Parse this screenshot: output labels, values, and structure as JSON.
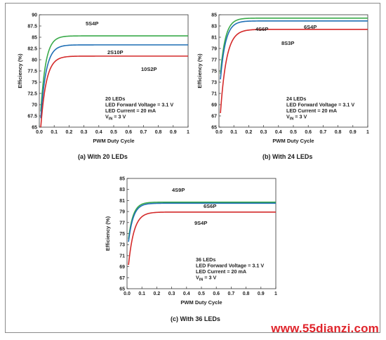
{
  "page": {
    "watermark": "www.55dianzi.com"
  },
  "chart_data": [
    {
      "type": "line",
      "caption": "(a) With 20 LEDs",
      "xlabel": "PWM Duty Cycle",
      "ylabel": "Efficiency (%)",
      "xlim": [
        0,
        1
      ],
      "ylim": [
        65,
        90
      ],
      "xticks": [
        0,
        0.1,
        0.2,
        0.3,
        0.4,
        0.5,
        0.6,
        0.7,
        0.8,
        0.9,
        1
      ],
      "xtick_labels": [
        "0.0",
        "0.1",
        "0.2",
        "0.3",
        "0.4",
        "0.5",
        "0.6",
        "0.7",
        "0.8",
        "0.9",
        "1"
      ],
      "yticks": [
        65,
        67.5,
        70,
        72.5,
        75,
        77.5,
        80,
        82.5,
        85,
        87.5,
        90
      ],
      "ytick_labels": [
        "65",
        "67.5",
        "70",
        "72.5",
        "75",
        "77.5",
        "80",
        "82.5",
        "85",
        "87.5",
        "90"
      ],
      "grid": false,
      "info": [
        "20 LEDs",
        "LED Forward Voltage = 3.1 V",
        "LED Current = 20 mA",
        "V_IN = 3 V"
      ],
      "series": [
        {
          "name": "5S4P",
          "color": "#3aaa4a",
          "start": 68.5,
          "asymptote": 85.3,
          "k": 30,
          "x": [
            0.01,
            0.05,
            0.1,
            0.2,
            0.4,
            0.6,
            0.8,
            1.0
          ],
          "values": [
            68.5,
            80.5,
            83.5,
            84.9,
            85.2,
            85.3,
            85.3,
            85.3
          ]
        },
        {
          "name": "2S10P",
          "color": "#1f6fb5",
          "start": 67.0,
          "asymptote": 83.3,
          "k": 28,
          "x": [
            0.01,
            0.05,
            0.1,
            0.2,
            0.4,
            0.6,
            0.8,
            1.0
          ],
          "values": [
            67.0,
            78.0,
            81.3,
            82.8,
            83.2,
            83.3,
            83.3,
            83.3
          ]
        },
        {
          "name": "10S2P",
          "color": "#d42a2a",
          "start": 65.0,
          "asymptote": 80.8,
          "k": 27,
          "x": [
            0.01,
            0.05,
            0.1,
            0.2,
            0.4,
            0.6,
            0.8,
            1.0
          ],
          "values": [
            65.0,
            75.5,
            78.8,
            80.4,
            80.7,
            80.8,
            80.8,
            80.8
          ]
        }
      ],
      "annotations": [
        {
          "text": "5S4P",
          "series": 0
        },
        {
          "text": "2S10P",
          "series": 1
        },
        {
          "text": "10S2P",
          "series": 2
        }
      ]
    },
    {
      "type": "line",
      "caption": "(b) With 24 LEDs",
      "xlabel": "PWM Duty Cycle",
      "ylabel": "Efficiency (%)",
      "xlim": [
        0,
        1
      ],
      "ylim": [
        65,
        85
      ],
      "xticks": [
        0,
        0.1,
        0.2,
        0.3,
        0.4,
        0.5,
        0.6,
        0.7,
        0.8,
        0.9,
        1
      ],
      "xtick_labels": [
        "0.0",
        "0.1",
        "0.2",
        "0.3",
        "0.4",
        "0.5",
        "0.6",
        "0.7",
        "0.8",
        "0.9",
        "1"
      ],
      "yticks": [
        65,
        67,
        69,
        71,
        73,
        75,
        77,
        79,
        81,
        83,
        85
      ],
      "ytick_labels": [
        "65",
        "67",
        "69",
        "71",
        "73",
        "75",
        "77",
        "79",
        "81",
        "83",
        "85"
      ],
      "grid": false,
      "info": [
        "24 LEDs",
        "LED Forward Voltage = 3.1 V",
        "LED Current = 20 mA",
        "V_IN = 3 V"
      ],
      "series": [
        {
          "name": "4S6P",
          "color": "#3aaa4a",
          "start": 74.5,
          "asymptote": 84.4,
          "k": 30,
          "x": [
            0.01,
            0.05,
            0.1,
            0.2,
            0.4,
            0.6,
            0.8,
            1.0
          ],
          "values": [
            74.5,
            81.5,
            83.5,
            84.2,
            84.4,
            84.4,
            84.4,
            84.4
          ]
        },
        {
          "name": "6S4P",
          "color": "#1f6fb5",
          "start": 73.5,
          "asymptote": 83.9,
          "k": 29,
          "x": [
            0.01,
            0.05,
            0.1,
            0.2,
            0.4,
            0.6,
            0.8,
            1.0
          ],
          "values": [
            73.5,
            80.8,
            82.9,
            83.7,
            83.9,
            83.9,
            83.9,
            83.9
          ]
        },
        {
          "name": "8S3P",
          "color": "#d42a2a",
          "start": 67.5,
          "asymptote": 82.4,
          "k": 25,
          "x": [
            0.01,
            0.05,
            0.1,
            0.2,
            0.4,
            0.6,
            0.8,
            1.0
          ],
          "values": [
            67.5,
            78.3,
            81.0,
            82.1,
            82.4,
            82.4,
            82.4,
            82.4
          ]
        }
      ],
      "annotations": [
        {
          "text": "4S6P",
          "series": 0
        },
        {
          "text": "6S4P",
          "series": 1
        },
        {
          "text": "8S3P",
          "series": 2
        }
      ]
    },
    {
      "type": "line",
      "caption": "(c) With 36 LEDs",
      "xlabel": "PWM Duty Cycle",
      "ylabel": "Efficiency (%)",
      "xlim": [
        0,
        1
      ],
      "ylim": [
        65,
        85
      ],
      "xticks": [
        0,
        0.1,
        0.2,
        0.3,
        0.4,
        0.5,
        0.6,
        0.7,
        0.8,
        0.9,
        1
      ],
      "xtick_labels": [
        "0.0",
        "0.1",
        "0.2",
        "0.3",
        "0.4",
        "0.5",
        "0.6",
        "0.7",
        "0.8",
        "0.9",
        "1"
      ],
      "yticks": [
        65,
        67,
        69,
        71,
        73,
        75,
        77,
        79,
        81,
        83,
        85
      ],
      "ytick_labels": [
        "65",
        "67",
        "69",
        "71",
        "73",
        "75",
        "77",
        "79",
        "81",
        "83",
        "85"
      ],
      "grid": false,
      "info": [
        "36 LEDs",
        "LED Forward Voltage = 3.1 V",
        "LED Current = 20 mA",
        "V_IN = 3 V"
      ],
      "series": [
        {
          "name": "4S9P",
          "color": "#3aaa4a",
          "start": 74.0,
          "asymptote": 80.7,
          "k": 32,
          "x": [
            0.01,
            0.05,
            0.1,
            0.2,
            0.4,
            0.6,
            0.8,
            1.0
          ],
          "values": [
            74.0,
            79.2,
            80.4,
            80.7,
            80.7,
            80.7,
            80.7,
            80.7
          ]
        },
        {
          "name": "6S6P",
          "color": "#1f6fb5",
          "start": 73.5,
          "asymptote": 80.5,
          "k": 31,
          "x": [
            0.01,
            0.05,
            0.1,
            0.2,
            0.4,
            0.6,
            0.8,
            1.0
          ],
          "values": [
            73.5,
            78.9,
            80.2,
            80.5,
            80.5,
            80.5,
            80.5,
            80.5
          ]
        },
        {
          "name": "9S4P",
          "color": "#d42a2a",
          "start": 69.3,
          "asymptote": 78.9,
          "k": 27,
          "x": [
            0.01,
            0.05,
            0.1,
            0.2,
            0.4,
            0.6,
            0.8,
            1.0
          ],
          "values": [
            69.3,
            76.1,
            78.3,
            78.8,
            78.9,
            78.9,
            78.9,
            78.9
          ]
        }
      ],
      "annotations": [
        {
          "text": "4S9P",
          "series": 0
        },
        {
          "text": "6S6P",
          "series": 1
        },
        {
          "text": "9S4P",
          "series": 2
        }
      ]
    }
  ]
}
